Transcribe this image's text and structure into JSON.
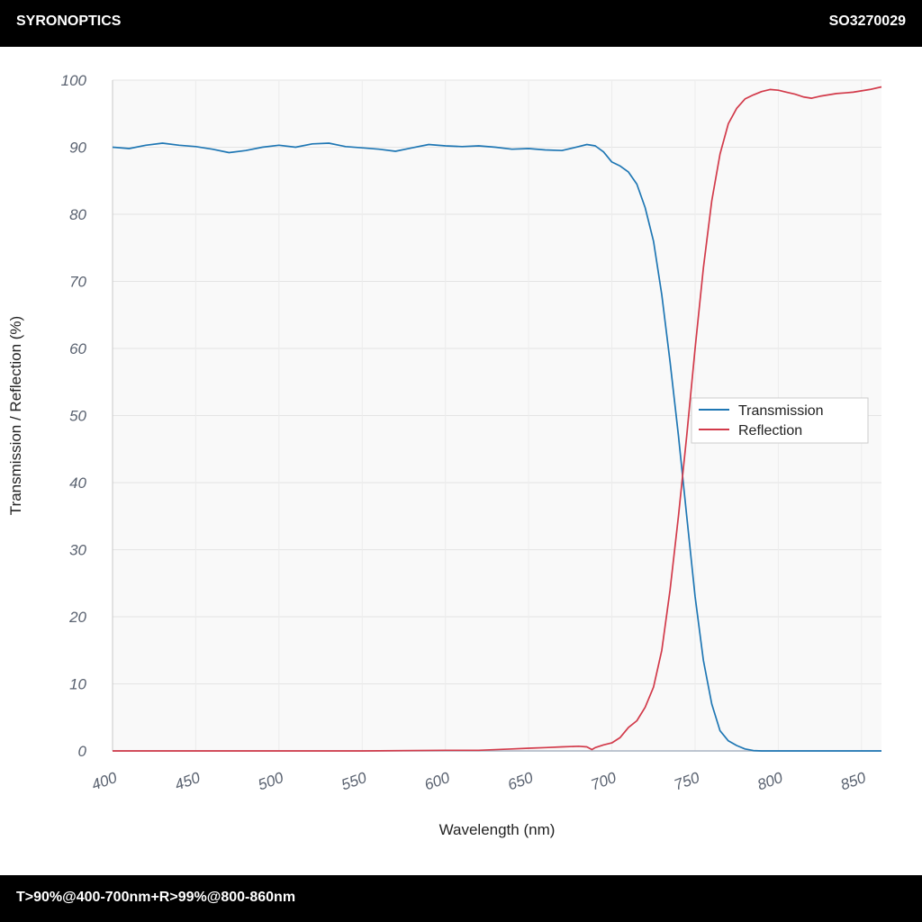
{
  "header": {
    "brand": "SYRONOPTICS",
    "part_number": "SO3270029"
  },
  "footer": {
    "spec": "T>90%@400-700nm+R>99%@800-860nm"
  },
  "colors": {
    "transmission": "#1f77b4",
    "reflection": "#d23a4a",
    "grid": "#e4e4e4",
    "plot_bg": "#f9f9f9"
  },
  "chart_data": {
    "type": "line",
    "xlabel": "Wavelength (nm)",
    "ylabel": "Transmission / Reflection (%)",
    "xlim": [
      400,
      862
    ],
    "ylim": [
      0,
      100
    ],
    "xticks": [
      400,
      450,
      500,
      550,
      600,
      650,
      700,
      750,
      800,
      850
    ],
    "yticks": [
      0,
      10,
      20,
      30,
      40,
      50,
      60,
      70,
      80,
      90,
      100
    ],
    "grid": true,
    "legend_position": "center-right",
    "series": [
      {
        "name": "Transmission",
        "color": "#1f77b4",
        "x": [
          400,
          410,
          420,
          430,
          440,
          450,
          460,
          470,
          480,
          490,
          500,
          510,
          520,
          530,
          540,
          550,
          560,
          570,
          580,
          590,
          600,
          610,
          620,
          630,
          640,
          650,
          660,
          670,
          680,
          685,
          690,
          695,
          700,
          705,
          710,
          715,
          720,
          725,
          730,
          735,
          740,
          745,
          750,
          755,
          760,
          765,
          770,
          775,
          780,
          785,
          790,
          795,
          800,
          810,
          820,
          830,
          840,
          850,
          862
        ],
        "values": [
          90.0,
          89.8,
          90.3,
          90.6,
          90.3,
          90.1,
          89.7,
          89.2,
          89.5,
          90.0,
          90.3,
          90.0,
          90.5,
          90.6,
          90.1,
          89.9,
          89.7,
          89.4,
          89.9,
          90.4,
          90.2,
          90.1,
          90.2,
          90.0,
          89.7,
          89.8,
          89.6,
          89.5,
          90.1,
          90.4,
          90.2,
          89.3,
          87.8,
          87.2,
          86.3,
          84.5,
          81.0,
          76.0,
          68.0,
          58.0,
          47.0,
          35.0,
          23.0,
          13.5,
          7.0,
          3.0,
          1.5,
          0.8,
          0.3,
          0.05,
          0.0,
          0.0,
          0.0,
          0.0,
          0.0,
          0.0,
          0.0,
          0.0,
          0.0
        ]
      },
      {
        "name": "Reflection",
        "color": "#d23a4a",
        "x": [
          400,
          450,
          500,
          550,
          600,
          620,
          640,
          650,
          660,
          670,
          680,
          685,
          688,
          690,
          695,
          700,
          705,
          710,
          715,
          720,
          725,
          730,
          735,
          740,
          745,
          750,
          755,
          760,
          765,
          770,
          775,
          780,
          785,
          790,
          795,
          800,
          805,
          810,
          815,
          820,
          825,
          830,
          835,
          840,
          845,
          850,
          855,
          862
        ],
        "values": [
          0.0,
          0.0,
          0.0,
          0.0,
          0.1,
          0.1,
          0.3,
          0.4,
          0.5,
          0.6,
          0.7,
          0.6,
          0.2,
          0.5,
          0.9,
          1.2,
          2.0,
          3.5,
          4.5,
          6.5,
          9.5,
          15.0,
          24.0,
          35.0,
          47.0,
          60.0,
          72.0,
          82.0,
          89.0,
          93.5,
          95.8,
          97.2,
          97.8,
          98.3,
          98.6,
          98.5,
          98.2,
          97.9,
          97.5,
          97.3,
          97.6,
          97.8,
          98.0,
          98.1,
          98.2,
          98.4,
          98.6,
          99.0
        ]
      }
    ]
  }
}
